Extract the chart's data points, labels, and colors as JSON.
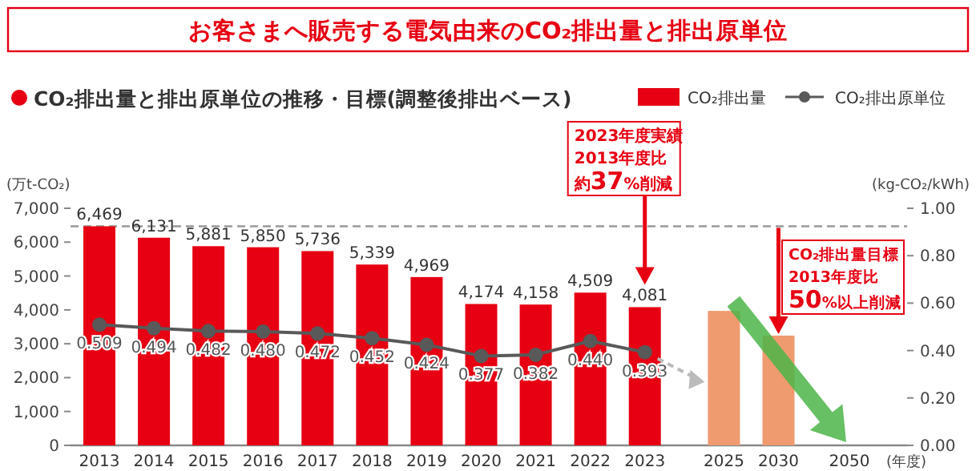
{
  "chart_data": {
    "type": "bar",
    "title": "お客さまへ販売する電気由来のCO₂排出量と排出原単位",
    "subtitle": "CO₂排出量と排出原単位の推移・目標(調整後排出ベース)",
    "ylabel": "(万t-CO₂)",
    "y2label": "(kg-CO₂/kWh)",
    "xlabel": "(年度)",
    "categories": [
      "2013",
      "2014",
      "2015",
      "2016",
      "2017",
      "2018",
      "2019",
      "2020",
      "2021",
      "2022",
      "2023",
      "2025",
      "2030",
      "2050"
    ],
    "series": [
      {
        "name": "CO₂排出量",
        "type": "bar",
        "color": "#e60012",
        "colors": [
          "#e60012",
          "#e60012",
          "#e60012",
          "#e60012",
          "#e60012",
          "#e60012",
          "#e60012",
          "#e60012",
          "#e60012",
          "#e60012",
          "#e60012",
          "#f09a70",
          "#f09a70",
          null
        ],
        "values": [
          6469,
          6131,
          5881,
          5850,
          5736,
          5339,
          4969,
          4174,
          4158,
          4509,
          4081,
          3970,
          3240,
          null
        ],
        "value_labels": [
          "6,469",
          "6,131",
          "5,881",
          "5,850",
          "5,736",
          "5,339",
          "4,969",
          "4,174",
          "4,158",
          "4,509",
          "4,081",
          null,
          null,
          null
        ]
      },
      {
        "name": "CO₂排出原単位",
        "type": "line",
        "axis": "y2",
        "color": "#595959",
        "marker": "circle",
        "line_style": "solid",
        "values": [
          0.509,
          0.494,
          0.482,
          0.48,
          0.472,
          0.452,
          0.424,
          0.377,
          0.382,
          0.44,
          0.393,
          null,
          null,
          null
        ],
        "value_labels": [
          "0.509",
          "0.494",
          "0.482",
          "0.480",
          "0.472",
          "0.452",
          "0.424",
          "0.377",
          "0.382",
          "0.440",
          "0.393",
          null,
          null,
          null
        ]
      }
    ],
    "ylim": [
      0,
      7000
    ],
    "yticks": [
      {
        "value": 0,
        "label": "0"
      },
      {
        "value": 1000,
        "label": "1,000"
      },
      {
        "value": 2000,
        "label": "2,000"
      },
      {
        "value": 3000,
        "label": "3,000"
      },
      {
        "value": 4000,
        "label": "4,000"
      },
      {
        "value": 5000,
        "label": "5,000"
      },
      {
        "value": 6000,
        "label": "6,000"
      },
      {
        "value": 7000,
        "label": "7,000"
      }
    ],
    "y2lim": [
      0,
      1
    ],
    "y2ticks": [
      {
        "value": 0,
        "label": "0.00"
      },
      {
        "value": 0.2,
        "label": "0.20"
      },
      {
        "value": 0.4,
        "label": "0.40"
      },
      {
        "value": 0.6,
        "label": "0.60"
      },
      {
        "value": 0.8,
        "label": "0.80"
      },
      {
        "value": 1,
        "label": "1.00"
      }
    ],
    "ref_lines": [
      {
        "axis": "y",
        "value": 6469,
        "color": "#999999",
        "line_style": "dashed"
      }
    ],
    "annotations": [
      "2023年度実績",
      "2013年度比",
      "約**37**%削減",
      "CO₂排出量目標",
      "2013年度比",
      {
        "text": "**50**%以上削減",
        "x": "2030",
        "y": 3240
      }
    ],
    "legend": "top right",
    "grid": false
  }
}
